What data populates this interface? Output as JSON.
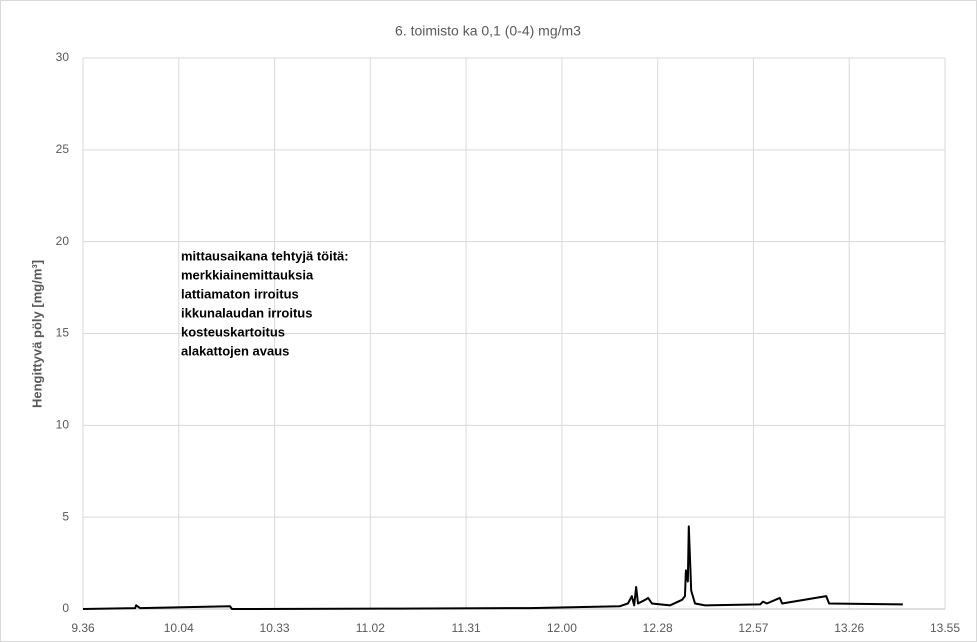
{
  "chart_data": {
    "type": "line",
    "title": "6. toimisto ka 0,1 (0-4) mg/m3",
    "y_label": "Hengittyvä pöly [mg/m³]",
    "annotation": [
      "mittausaikana tehtyjä töitä:",
      "merkkiainemittauksia",
      "lattiamaton irroitus",
      "ikkunalaudan irroitus",
      "kosteuskartoitus",
      "alakattojen avaus"
    ],
    "x": [
      0.4,
      0.4109,
      0.4111,
      0.4119,
      0.4307,
      0.4311,
      0.4662,
      0.4933,
      0.5121,
      0.5138,
      0.5146,
      0.5151,
      0.5155,
      0.5159,
      0.5174,
      0.518,
      0.5188,
      0.5226,
      0.5251,
      0.5257,
      0.5259,
      0.5263,
      0.5265,
      0.527,
      0.5278,
      0.5299,
      0.5414,
      0.542,
      0.5428,
      0.5455,
      0.546,
      0.5552,
      0.5558,
      0.5712
    ],
    "series": [
      {
        "color": "#000000",
        "values": [
          0,
          0.05,
          0.2,
          0.05,
          0.15,
          0,
          0.02,
          0.05,
          0.15,
          0.3,
          0.7,
          0.2,
          1.2,
          0.3,
          0.5,
          0.6,
          0.3,
          0.2,
          0.5,
          0.7,
          2.1,
          1.5,
          4.5,
          1.0,
          0.3,
          0.2,
          0.25,
          0.4,
          0.3,
          0.6,
          0.3,
          0.7,
          0.3,
          0.25
        ]
      }
    ],
    "xlim": [
      0.4,
      0.58
    ],
    "xticks": [
      {
        "value": 0.4,
        "label": "9.36"
      },
      {
        "value": 0.42,
        "label": "10.04"
      },
      {
        "value": 0.44,
        "label": "10.33"
      },
      {
        "value": 0.46,
        "label": "11.02"
      },
      {
        "value": 0.48,
        "label": "11.31"
      },
      {
        "value": 0.5,
        "label": "12.00"
      },
      {
        "value": 0.52,
        "label": "12.28"
      },
      {
        "value": 0.54,
        "label": "12.57"
      },
      {
        "value": 0.56,
        "label": "13.26"
      },
      {
        "value": 0.58,
        "label": "13.55"
      }
    ],
    "ylim": [
      0,
      30
    ],
    "yticks": [
      0,
      5,
      10,
      15,
      20,
      25,
      30
    ],
    "grid": true
  }
}
